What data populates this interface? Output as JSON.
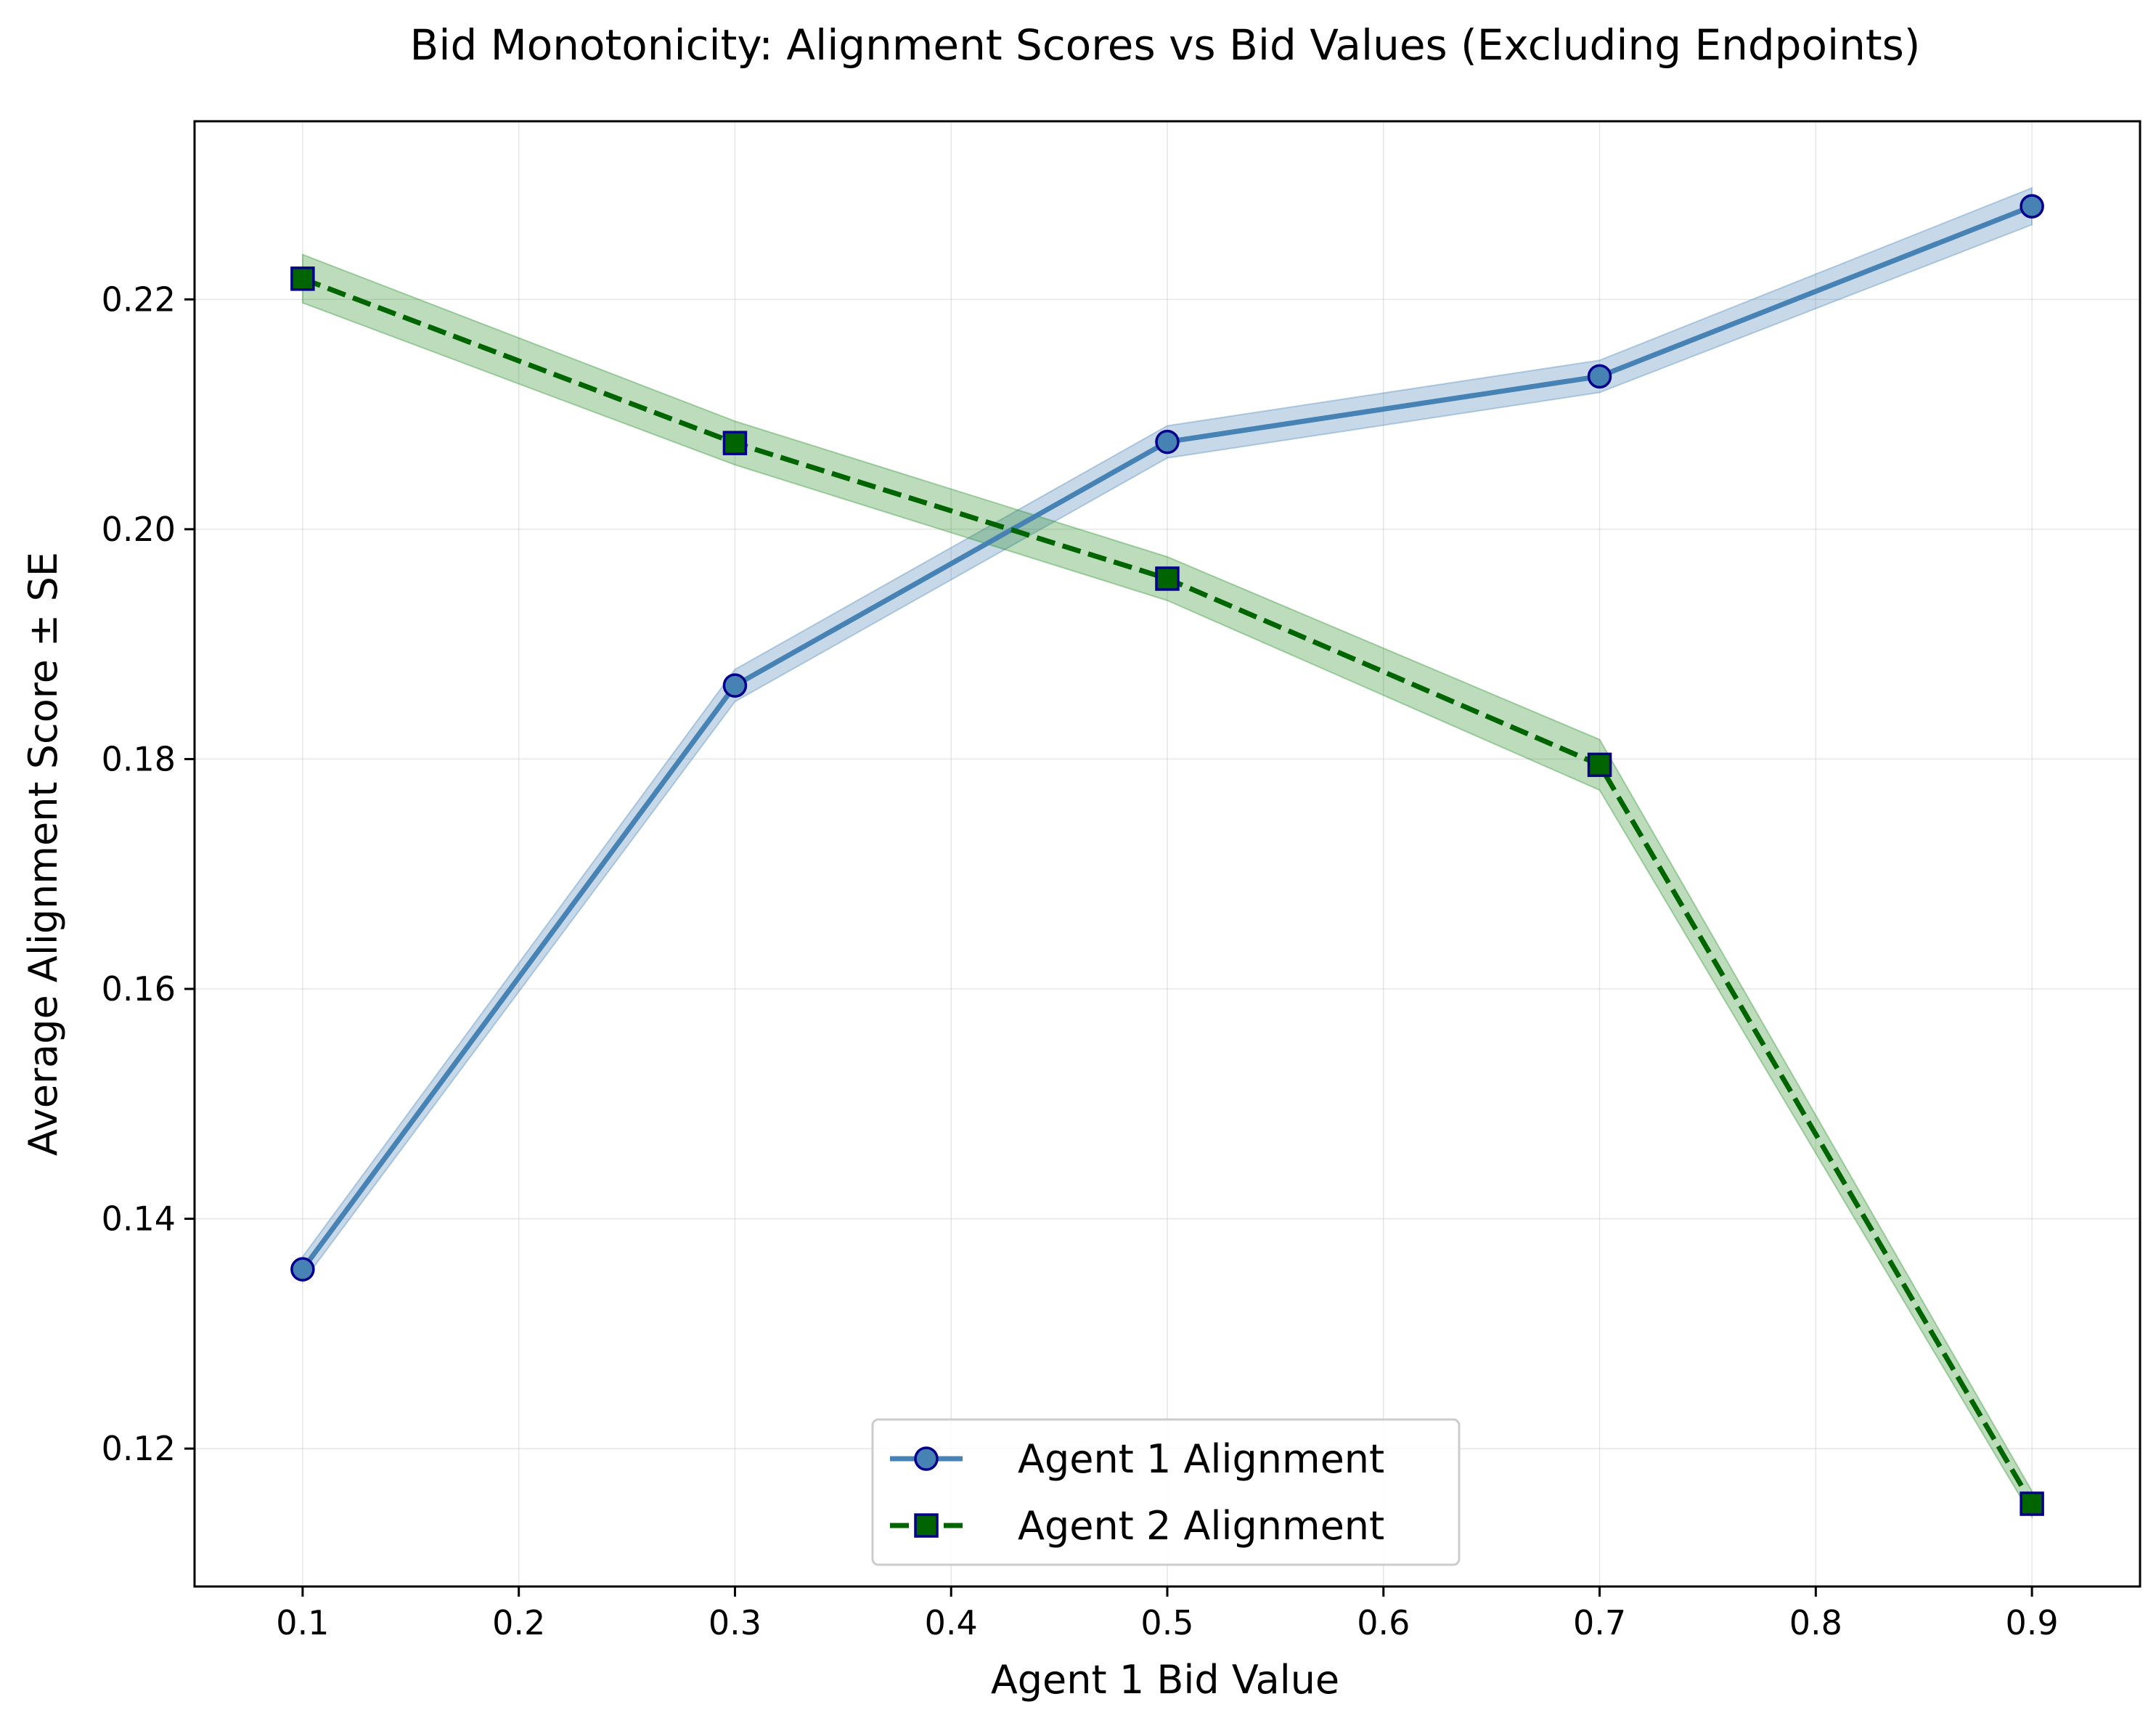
{
  "chart_data": {
    "type": "line",
    "title": "Bid Monotonicity: Alignment Scores vs Bid Values (Excluding Endpoints)",
    "xlabel": "Agent 1 Bid Value",
    "ylabel": "Average Alignment Score ± SE",
    "xlim": [
      0.05,
      0.95
    ],
    "ylim": [
      0.108,
      0.2355
    ],
    "x_ticks": [
      0.1,
      0.2,
      0.3,
      0.4,
      0.5,
      0.6,
      0.7,
      0.8,
      0.9
    ],
    "x_tick_labels": [
      "0.1",
      "0.2",
      "0.3",
      "0.4",
      "0.5",
      "0.6",
      "0.7",
      "0.8",
      "0.9"
    ],
    "y_ticks": [
      0.12,
      0.14,
      0.16,
      0.18,
      0.2,
      0.22
    ],
    "y_tick_labels": [
      "0.12",
      "0.14",
      "0.16",
      "0.18",
      "0.20",
      "0.22"
    ],
    "grid": true,
    "legend_position": "lower-center",
    "x": [
      0.1,
      0.3,
      0.5,
      0.7,
      0.9
    ],
    "series": [
      {
        "name": "Agent 1 Alignment",
        "values": [
          0.1356,
          0.1864,
          0.2076,
          0.2133,
          0.2281
        ],
        "se": [
          0.0011,
          0.0014,
          0.0014,
          0.0014,
          0.0016
        ],
        "line_color": "#4682b4",
        "band_color": "#4682b4",
        "marker": "circle",
        "marker_fill": "#4682b4",
        "marker_edge": "#00008b",
        "line_style": "solid"
      },
      {
        "name": "Agent 2 Alignment",
        "values": [
          0.2218,
          0.2075,
          0.1957,
          0.1795,
          0.1152
        ],
        "se": [
          0.0021,
          0.0019,
          0.0019,
          0.0022,
          0.0011
        ],
        "line_color": "#006400",
        "band_color": "#228b22",
        "marker": "square",
        "marker_fill": "#006400",
        "marker_edge": "#00008b",
        "line_style": "dashed"
      }
    ]
  }
}
